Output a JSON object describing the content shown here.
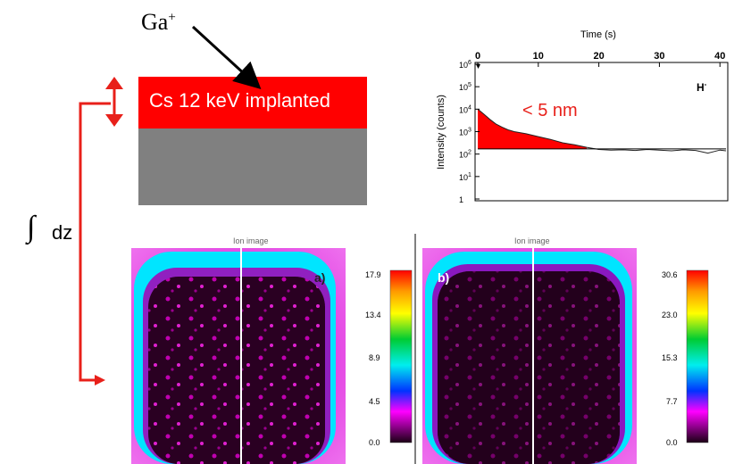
{
  "schematic": {
    "ion_label": "Ga",
    "ion_charge": "+",
    "layer_label": "Cs 12 keV   implanted",
    "integral_symbol": "∫",
    "integral_label": "dz"
  },
  "profile": {
    "x_title": "Time (s)",
    "y_title": "Intensity (counts)",
    "x_ticks": [
      "0",
      "10",
      "20",
      "30",
      "40"
    ],
    "y_ticks": [
      "1",
      "10",
      "10",
      "10",
      "10",
      "10",
      "10"
    ],
    "y_tick_exps": [
      "",
      "1",
      "2",
      "3",
      "4",
      "5",
      "6"
    ],
    "annotation": "< 5 nm",
    "species": "H",
    "species_charge": "-",
    "fill_color": "#ff0000"
  },
  "chart_data": {
    "type": "line",
    "xlabel": "Time (s)",
    "ylabel": "Intensity (counts)",
    "xlim": [
      0,
      41
    ],
    "ylim_log10": [
      0,
      6
    ],
    "y_scale": "log",
    "title": "",
    "series": [
      {
        "name": "H-",
        "x": [
          0,
          1,
          2,
          3,
          4,
          5,
          6,
          8,
          10,
          12,
          14,
          16,
          18,
          20,
          22,
          24,
          26,
          28,
          30,
          32,
          34,
          36,
          38,
          40,
          41
        ],
        "y": [
          10000,
          6000,
          3500,
          2200,
          1600,
          1200,
          1000,
          800,
          600,
          450,
          320,
          260,
          200,
          160,
          150,
          155,
          145,
          160,
          150,
          140,
          155,
          145,
          110,
          150,
          140
        ]
      }
    ],
    "baseline": 170,
    "annotations": [
      "< 5 nm"
    ]
  },
  "ion_images": {
    "title_a": "Ion image",
    "title_b": "Ion image",
    "label_a": "a)",
    "label_b": "b)",
    "scale_a": [
      "17.9",
      "13.4",
      "8.9",
      "4.5",
      "0.0"
    ],
    "scale_b": [
      "30.6",
      "23.0",
      "15.3",
      "7.7",
      "0.0"
    ]
  }
}
